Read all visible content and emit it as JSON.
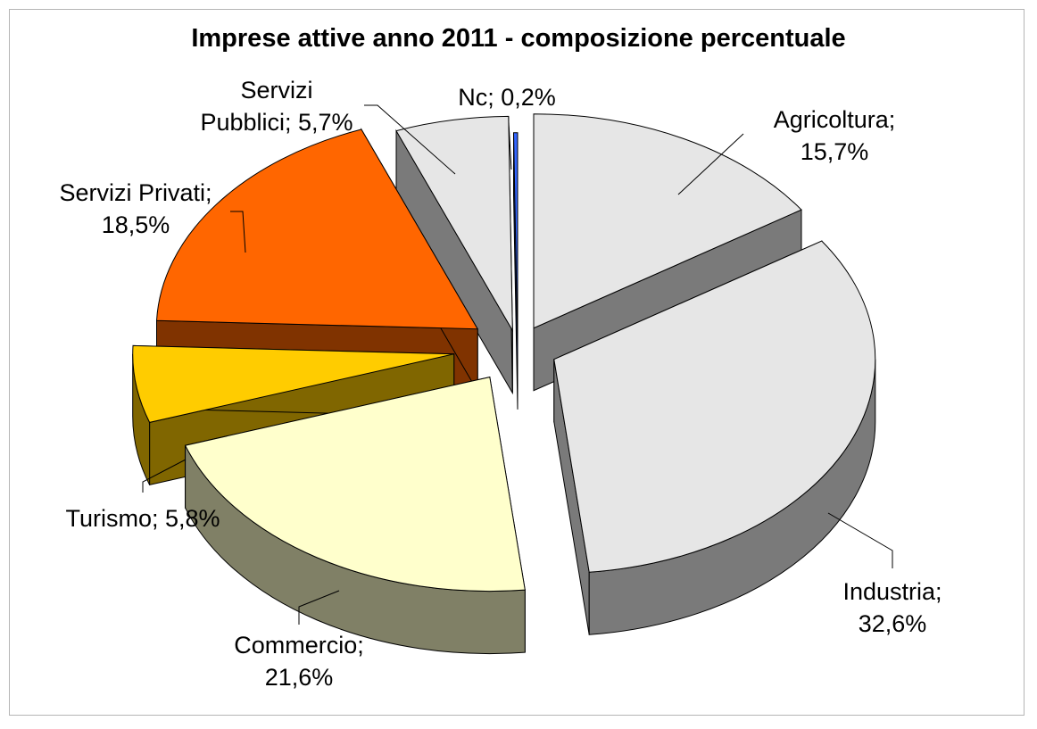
{
  "chart_data": {
    "type": "pie",
    "title": "Imprese attive anno 2011 - composizione percentuale",
    "legend": "none",
    "slices": [
      {
        "name": "Agricoltura",
        "value": 15.7,
        "label": [
          "Agricoltura;",
          "15,7%"
        ],
        "top_color": "#e6e6e6",
        "side_color": "#7a7a7a"
      },
      {
        "name": "Industria",
        "value": 32.6,
        "label": [
          "Industria;",
          "32,6%"
        ],
        "top_color": "#e6e6e6",
        "side_color": "#7a7a7a"
      },
      {
        "name": "Commercio",
        "value": 21.6,
        "label": [
          "Commercio;",
          "21,6%"
        ],
        "top_color": "#ffffcc",
        "side_color": "#808066"
      },
      {
        "name": "Turismo",
        "value": 5.8,
        "label": [
          "Turismo; 5,8%"
        ],
        "top_color": "#ffcc00",
        "side_color": "#806600"
      },
      {
        "name": "Servizi Privati",
        "value": 18.5,
        "label": [
          "Servizi Privati;",
          "18,5%"
        ],
        "top_color": "#ff6600",
        "side_color": "#803300"
      },
      {
        "name": "Servizi Pubblici",
        "value": 5.7,
        "label": [
          "Servizi",
          "Pubblici; 5,7%"
        ],
        "top_color": "#e6e6e6",
        "side_color": "#7a7a7a"
      },
      {
        "name": "Nc",
        "value": 0.2,
        "label": [
          "Nc; 0,2%"
        ],
        "top_color": "#3366ff",
        "side_color": "#1a3380"
      }
    ]
  }
}
